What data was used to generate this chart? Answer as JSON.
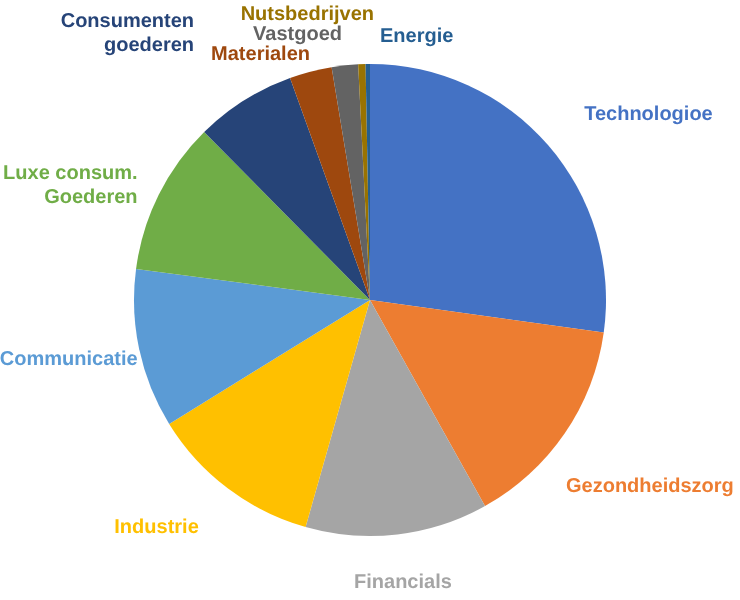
{
  "chart_data": {
    "type": "pie",
    "categories": [
      "Technologioe",
      "Gezondheidszorg",
      "Financials",
      "Industrie",
      "Communicatie",
      "Luxe consum. Goederen",
      "Consumenten goederen",
      "Materialen",
      "Vastgoed",
      "Nutsbedrijven",
      "Energie"
    ],
    "values": [
      27.2,
      14.7,
      12.5,
      11.8,
      10.9,
      10.5,
      6.9,
      2.9,
      1.8,
      0.5,
      0.3
    ],
    "colors": [
      "#4472c4",
      "#ed7d31",
      "#a5a5a5",
      "#ffc000",
      "#5b9bd5",
      "#70ad47",
      "#264478",
      "#9e480e",
      "#636363",
      "#997300",
      "#255e91"
    ]
  }
}
